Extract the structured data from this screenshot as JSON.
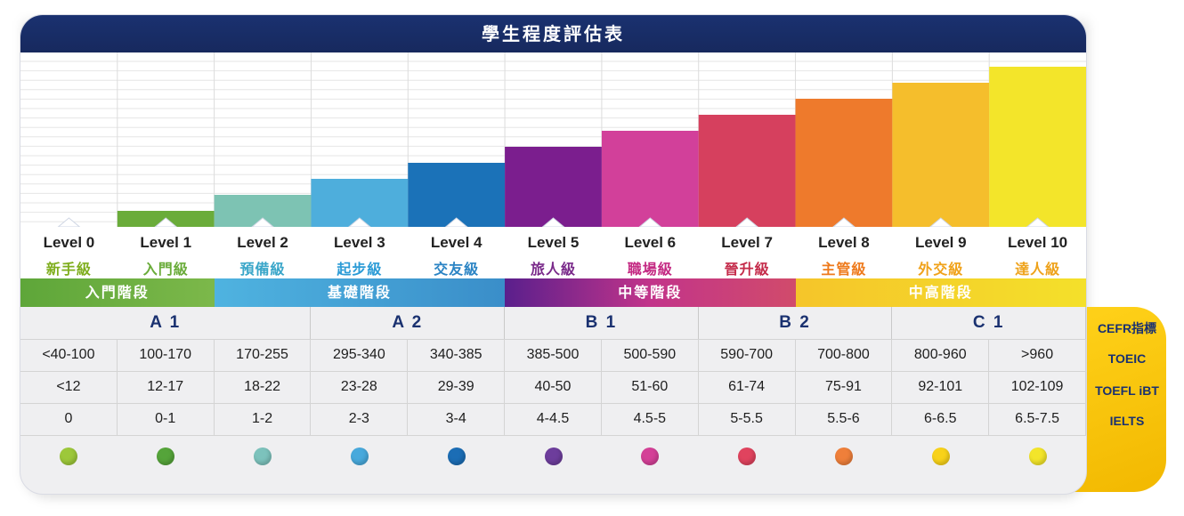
{
  "title": "學生程度評估表",
  "levels": [
    {
      "name": "Level 0",
      "sub": "新手級",
      "bar": "#ffffff",
      "sub_color": "#7fae1e"
    },
    {
      "name": "Level 1",
      "sub": "入門級",
      "bar": "#6aac3a",
      "sub_color": "#6aac3a"
    },
    {
      "name": "Level 2",
      "sub": "預備級",
      "bar": "#7dc3b3",
      "sub_color": "#3aa6c9"
    },
    {
      "name": "Level 3",
      "sub": "起步級",
      "bar": "#4eaedc",
      "sub_color": "#2b9bd6"
    },
    {
      "name": "Level 4",
      "sub": "交友級",
      "bar": "#1b72b8",
      "sub_color": "#2b84c4"
    },
    {
      "name": "Level 5",
      "sub": "旅人級",
      "bar": "#7b1e8e",
      "sub_color": "#7a2a8a"
    },
    {
      "name": "Level 6",
      "sub": "職場級",
      "bar": "#d2409a",
      "sub_color": "#c42a83"
    },
    {
      "name": "Level 7",
      "sub": "晉升級",
      "bar": "#d6405e",
      "sub_color": "#c42b4a"
    },
    {
      "name": "Level 8",
      "sub": "主管級",
      "bar": "#ee7a2c",
      "sub_color": "#ee7a1c"
    },
    {
      "name": "Level 9",
      "sub": "外交級",
      "bar": "#f5be2c",
      "sub_color": "#f0a21a"
    },
    {
      "name": "Level 10",
      "sub": "達人級",
      "bar": "#f3e52a",
      "sub_color": "#eea21a"
    }
  ],
  "stages": [
    {
      "label": "入門階段",
      "span": [
        0,
        1
      ],
      "colors": [
        "#5ea639",
        "#7cb84a"
      ]
    },
    {
      "label": "基礎階段",
      "span": [
        2,
        4
      ],
      "colors": [
        "#4fb3e0",
        "#3a8ec9"
      ]
    },
    {
      "label": "中等階段",
      "span": [
        5,
        7
      ],
      "colors": [
        "#5a1f8c",
        "#c2348a",
        "#d14b6b"
      ]
    },
    {
      "label": "中高階段",
      "span": [
        8,
        10
      ],
      "colors": [
        "#f5c52a",
        "#f4e02a"
      ]
    }
  ],
  "cefr": [
    {
      "label": "A 1",
      "span": [
        0,
        2
      ]
    },
    {
      "label": "A 2",
      "span": [
        3,
        4
      ]
    },
    {
      "label": "B 1",
      "span": [
        5,
        6
      ]
    },
    {
      "label": "B 2",
      "span": [
        7,
        8
      ]
    },
    {
      "label": "C 1",
      "span": [
        9,
        10
      ]
    }
  ],
  "toeic": [
    "<40-100",
    "100-170",
    "170-255",
    "295-340",
    "340-385",
    "385-500",
    "500-590",
    "590-700",
    "700-800",
    "800-960",
    ">960"
  ],
  "toefl": [
    "<12",
    "12-17",
    "18-22",
    "23-28",
    "29-39",
    "40-50",
    "51-60",
    "61-74",
    "75-91",
    "92-101",
    "102-109"
  ],
  "ielts": [
    "0",
    "0-1",
    "1-2",
    "2-3",
    "3-4",
    "4-4.5",
    "4.5-5",
    "5-5.5",
    "5.5-6",
    "6-6.5",
    "6.5-7.5"
  ],
  "dot_colors": [
    "#9dc83a",
    "#55a43a",
    "#7cc2bc",
    "#48a9dc",
    "#1b6db5",
    "#6d3d9c",
    "#d44097",
    "#e0435e",
    "#ef7f3a",
    "#f8d21a",
    "#f3e52a"
  ],
  "legend": [
    "CEFR指標",
    "TOEIC",
    "TOEFL iBT",
    "IELTS"
  ],
  "chart_data": {
    "type": "bar",
    "categories": [
      "Level 0",
      "Level 1",
      "Level 2",
      "Level 3",
      "Level 4",
      "Level 5",
      "Level 6",
      "Level 7",
      "Level 8",
      "Level 9",
      "Level 10"
    ],
    "values": [
      0,
      1,
      2,
      3,
      4,
      5,
      6,
      7,
      8,
      9,
      10
    ],
    "ylim": [
      0,
      10
    ]
  }
}
